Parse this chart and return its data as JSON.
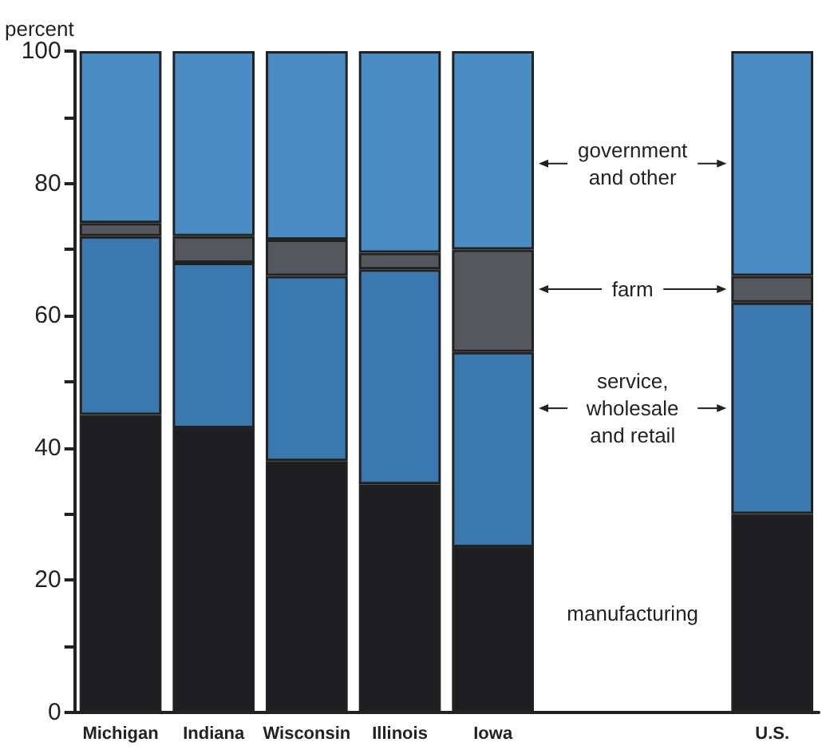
{
  "chart_data": {
    "type": "bar",
    "stacked": true,
    "ylabel": "percent",
    "categories": [
      "Michigan",
      "Indiana",
      "Wisconsin",
      "Illinois",
      "Iowa",
      null,
      null,
      "U.S."
    ],
    "series": [
      {
        "name": "manufacturing",
        "color": "#1e1e22",
        "values": [
          45,
          43,
          38,
          34.5,
          25,
          null,
          null,
          30
        ]
      },
      {
        "name": "service,\nwholesale\nand retail",
        "color": "#3a78ae",
        "values": [
          27,
          25,
          28,
          32.5,
          29.5,
          null,
          null,
          32
        ]
      },
      {
        "name": "farm",
        "color": "#55575e",
        "values": [
          2,
          4,
          5.5,
          2.5,
          15.5,
          null,
          null,
          4
        ]
      },
      {
        "name": "government\nand other",
        "color": "#4a8cc4",
        "values": [
          26,
          28,
          28.5,
          30.5,
          30,
          null,
          null,
          34
        ]
      }
    ],
    "ylim": [
      0,
      100
    ],
    "yticks": [
      0,
      {
        "value": 10,
        "label": null
      },
      20,
      {
        "value": 30,
        "label": null
      },
      40,
      {
        "value": 50,
        "label": null
      },
      60,
      {
        "value": 70,
        "label": null
      },
      80,
      {
        "value": 90,
        "label": null
      },
      100
    ],
    "grid": false,
    "legend": "right"
  }
}
